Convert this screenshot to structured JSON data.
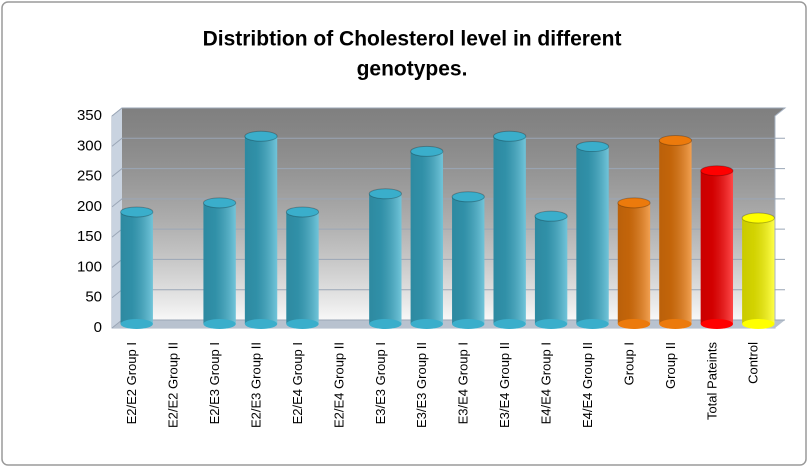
{
  "chart_data": {
    "type": "bar",
    "title": [
      "Distribtion of Cholesterol level in different",
      "genotypes."
    ],
    "categories": [
      "E2/E2 Group I",
      "E2/E2 Group II",
      "E2/E3 Group I",
      "E2/E3 Group II",
      "E2/E4 Group I",
      "E2/E4 Group II",
      "E3/E3 Group I",
      "E3/E3 Group II",
      "E3/E4 Group I",
      "E3/E4 Group II",
      "E4/E4 Group I",
      "E4/E4 Group II",
      "Group I",
      "Group II",
      "Total Pateints",
      "Control"
    ],
    "values": [
      185,
      null,
      200,
      310,
      185,
      null,
      215,
      285,
      210,
      310,
      178,
      293,
      200,
      303,
      253,
      175
    ],
    "colors": [
      "#3aaecb",
      "#3aaecb",
      "#3aaecb",
      "#3aaecb",
      "#3aaecb",
      "#3aaecb",
      "#3aaecb",
      "#3aaecb",
      "#3aaecb",
      "#3aaecb",
      "#3aaecb",
      "#3aaecb",
      "#ec7a0c",
      "#ec7a0c",
      "#ff0000",
      "#ffff00"
    ],
    "ylim": [
      0,
      350
    ],
    "yticks": [
      0,
      50,
      100,
      150,
      200,
      250,
      300,
      350
    ],
    "grid": true
  }
}
